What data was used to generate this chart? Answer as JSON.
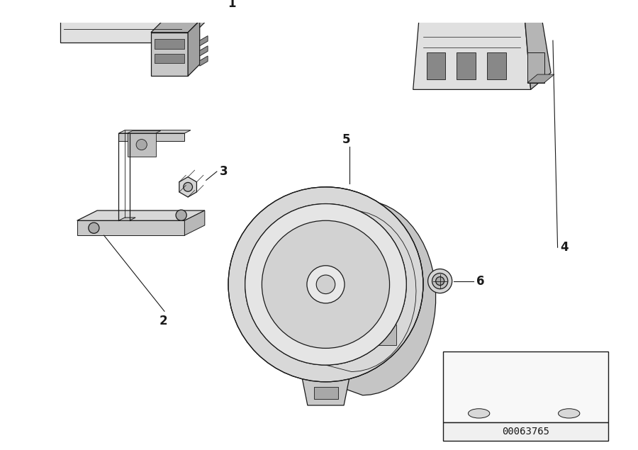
{
  "bg_color": "#ffffff",
  "line_color": "#1a1a1a",
  "fig_width": 9.0,
  "fig_height": 6.35,
  "diagram_id": "00063765"
}
